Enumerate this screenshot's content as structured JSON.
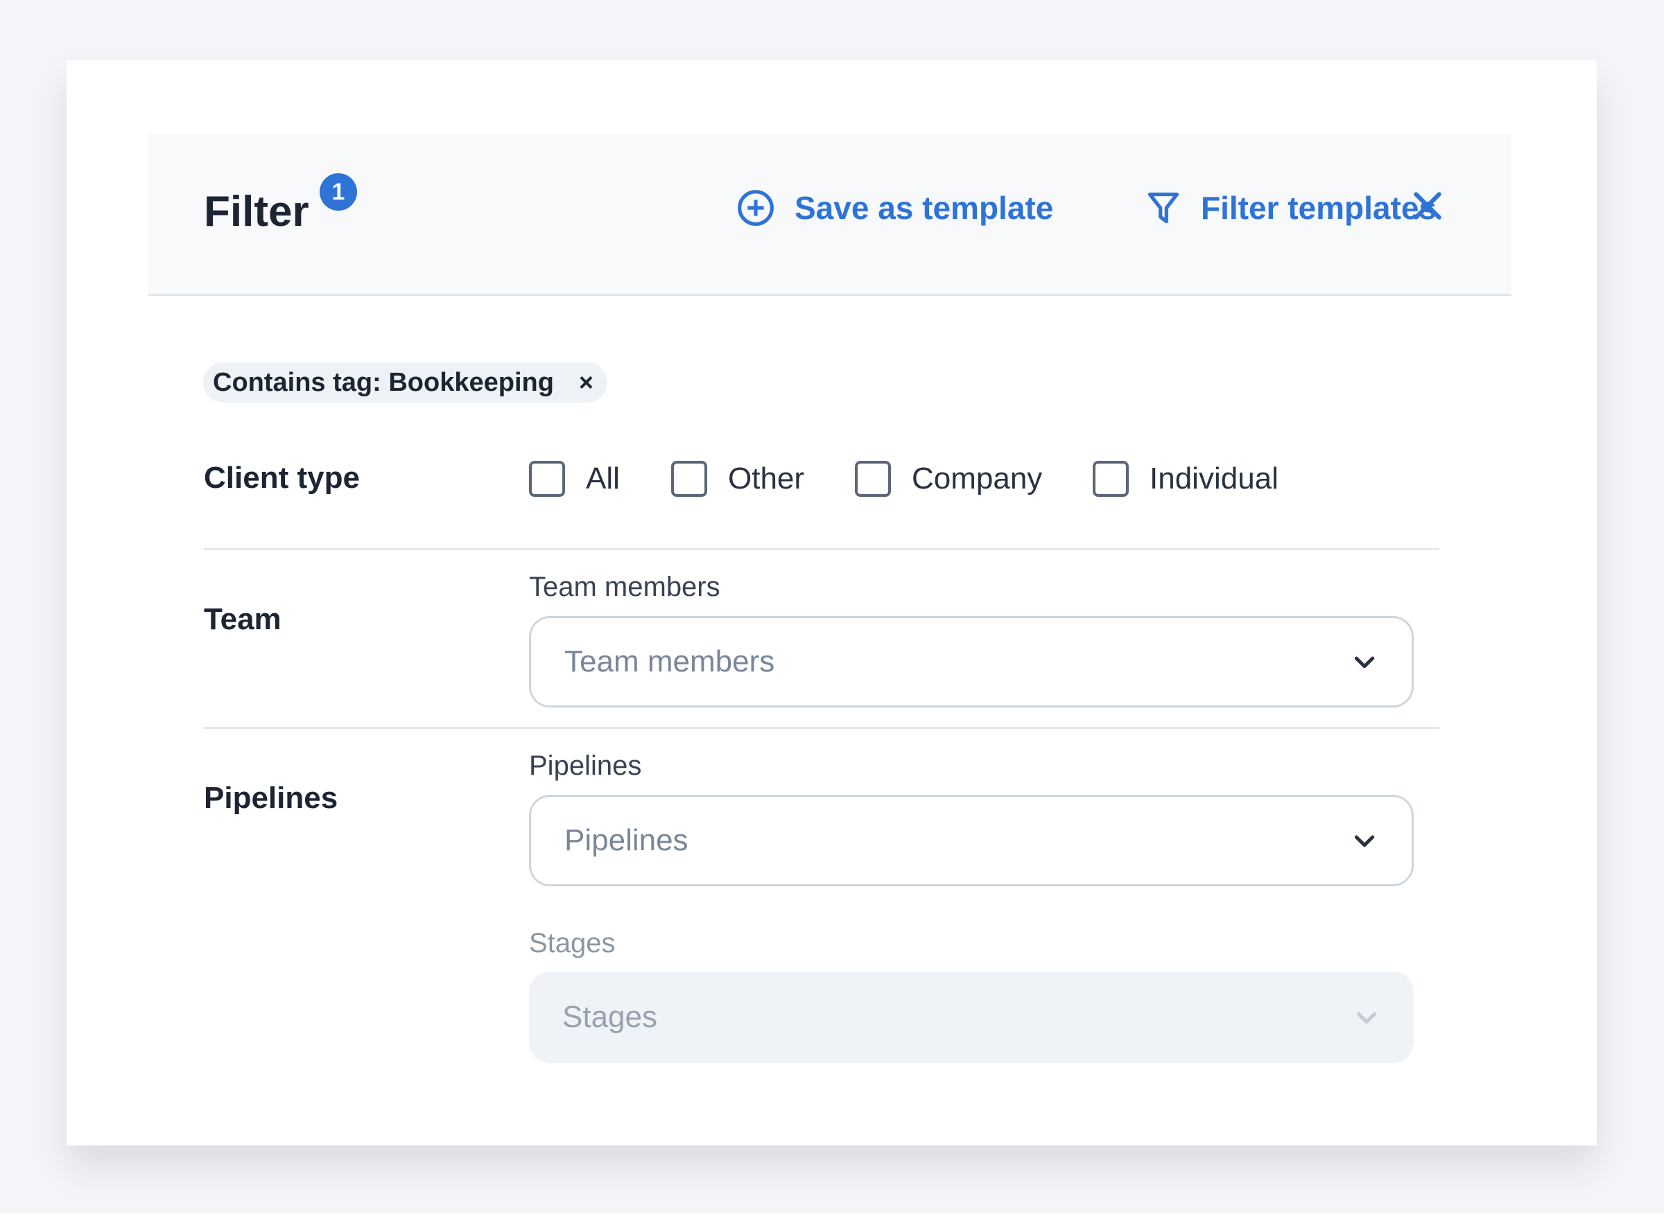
{
  "header": {
    "title": "Filter",
    "badge_count": "1",
    "save_template_label": "Save as template",
    "filter_templates_label": "Filter templates",
    "accent_color": "#2f73d6"
  },
  "active_chip": {
    "label": "Contains tag: Bookkeeping",
    "remove": "×"
  },
  "client_type": {
    "label": "Client type",
    "options": [
      {
        "label": "All",
        "checked": false
      },
      {
        "label": "Other",
        "checked": false
      },
      {
        "label": "Company",
        "checked": false
      },
      {
        "label": "Individual",
        "checked": false
      }
    ]
  },
  "team": {
    "label": "Team",
    "field_label": "Team members",
    "placeholder": "Team members"
  },
  "pipelines": {
    "label": "Pipelines",
    "field_label": "Pipelines",
    "placeholder": "Pipelines",
    "stages_label": "Stages",
    "stages_placeholder": "Stages",
    "stages_disabled": true
  }
}
